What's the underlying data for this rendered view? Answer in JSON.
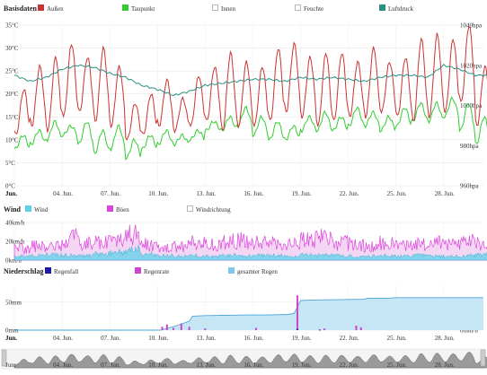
{
  "colors": {
    "outdoor": "#cc3333",
    "dewpoint": "#33cc33",
    "pressure": "#2a9080",
    "wind": "#5fd0e8",
    "gusts": "#dd44dd",
    "rainfall": "#1a1aa8",
    "rainrate": "#cc44cc",
    "total_rain": "#7ec8ec",
    "grid": "#e6e6e6",
    "disabled": "#bbbbbb"
  },
  "x_axis": {
    "ticks": [
      "Jun.",
      "04. Jun.",
      "07. Jun.",
      "10. Jun.",
      "13. Jun.",
      "16. Jun.",
      "19. Jun.",
      "22. Jun.",
      "25. Jun.",
      "28. Jun."
    ],
    "tick_days": [
      1,
      4,
      7,
      10,
      13,
      16,
      19,
      22,
      25,
      28
    ],
    "range_days": [
      1,
      30.5
    ]
  },
  "panels": {
    "basis": {
      "title": "Basisdaten",
      "legend": [
        {
          "label": "Außen",
          "color_key": "outdoor",
          "enabled": true
        },
        {
          "label": "Taupunkt",
          "color_key": "dewpoint",
          "enabled": true
        },
        {
          "label": "Innen",
          "color_key": "disabled",
          "enabled": false
        },
        {
          "label": "Feuchte",
          "color_key": "disabled",
          "enabled": false
        },
        {
          "label": "Luftdruck",
          "color_key": "pressure",
          "enabled": true
        }
      ],
      "y_left_ticks": [
        "0°C",
        "5°C",
        "10°C",
        "15°C",
        "20°C",
        "25°C",
        "30°C",
        "35°C"
      ],
      "y_right_ticks": [
        "960hpa",
        "980hpa",
        "1000hpa",
        "1020hpa",
        "1040hpa"
      ]
    },
    "wind": {
      "title": "Wind",
      "legend": [
        {
          "label": "Wind",
          "color_key": "wind",
          "enabled": true
        },
        {
          "label": "Böen",
          "color_key": "gusts",
          "enabled": true
        },
        {
          "label": "Windrichtung",
          "color_key": "disabled",
          "enabled": false
        }
      ],
      "y_ticks": [
        "0km/h",
        "20km/h",
        "40km/h"
      ]
    },
    "rain": {
      "title": "Niederschlag",
      "legend": [
        {
          "label": "Regenfall",
          "color_key": "rainfall",
          "enabled": true
        },
        {
          "label": "Regenrate",
          "color_key": "rainrate",
          "enabled": true
        },
        {
          "label": "gesamter Regen",
          "color_key": "total_rain",
          "enabled": true
        }
      ],
      "y_left_ticks": [
        "0mm",
        "50mm"
      ],
      "y_right_ticks": [
        "0mm/h",
        "50mm/h"
      ]
    }
  },
  "chart_data": [
    {
      "type": "line",
      "panel": "Basisdaten",
      "x_unit": "day of June",
      "ylim_left": [
        0,
        35
      ],
      "ylim_right": [
        960,
        1040
      ],
      "series": [
        {
          "name": "Außen",
          "axis": "left",
          "unit": "°C",
          "daily_max": [
            21,
            26,
            28,
            31,
            28,
            30,
            26,
            18,
            20,
            23,
            19,
            24,
            26,
            29,
            27,
            26,
            30,
            31,
            28,
            29,
            29,
            27,
            30,
            27,
            28,
            32,
            33,
            32,
            35,
            26
          ],
          "daily_min": [
            11,
            13,
            12,
            15,
            16,
            14,
            13,
            10,
            11,
            13,
            12,
            13,
            14,
            12,
            13,
            13,
            14,
            16,
            15,
            13,
            14,
            15,
            15,
            16,
            15,
            14,
            15,
            16,
            18,
            13
          ]
        },
        {
          "name": "Taupunkt",
          "axis": "left",
          "unit": "°C",
          "daily_max": [
            11,
            12,
            14,
            13,
            14,
            12,
            13,
            10,
            11,
            12,
            11,
            12,
            14,
            15,
            17,
            15,
            14,
            13,
            15,
            16,
            15,
            17,
            16,
            15,
            17,
            18,
            18,
            19,
            18,
            15
          ],
          "daily_min": [
            8,
            9,
            10,
            11,
            9,
            7,
            8,
            6,
            8,
            9,
            9,
            10,
            12,
            12,
            13,
            11,
            10,
            10,
            12,
            12,
            12,
            13,
            13,
            12,
            13,
            14,
            14,
            15,
            12,
            9
          ]
        },
        {
          "name": "Luftdruck",
          "axis": "right",
          "unit": "hpa",
          "daily": [
            1015,
            1012,
            1014,
            1018,
            1020,
            1019,
            1016,
            1014,
            1010,
            1008,
            1005,
            1007,
            1010,
            1011,
            1012,
            1013,
            1013,
            1012,
            1014,
            1013,
            1014,
            1013,
            1012,
            1014,
            1015,
            1015,
            1014,
            1020,
            1018,
            1015
          ]
        }
      ]
    },
    {
      "type": "area",
      "panel": "Wind",
      "x_unit": "day of June",
      "ylim": [
        0,
        40
      ],
      "series": [
        {
          "name": "Wind",
          "unit": "km/h",
          "daily": [
            5,
            6,
            7,
            6,
            6,
            8,
            10,
            14,
            8,
            6,
            5,
            6,
            5,
            6,
            5,
            6,
            6,
            5,
            7,
            6,
            6,
            5,
            5,
            6,
            5,
            6,
            5,
            5,
            6,
            7
          ]
        },
        {
          "name": "Böen",
          "unit": "km/h",
          "daily": [
            15,
            18,
            20,
            28,
            22,
            25,
            30,
            35,
            20,
            16,
            18,
            22,
            20,
            24,
            25,
            22,
            21,
            20,
            25,
            28,
            22,
            20,
            18,
            22,
            21,
            20,
            23,
            20,
            24,
            22
          ]
        }
      ]
    },
    {
      "type": "area",
      "panel": "Niederschlag",
      "x_unit": "day of June",
      "ylim_left": [
        0,
        80
      ],
      "ylim_right": [
        0,
        80
      ],
      "series": [
        {
          "name": "gesamter Regen",
          "axis": "left",
          "unit": "mm",
          "points": [
            [
              1,
              0
            ],
            [
              10.2,
              0
            ],
            [
              11.2,
              8
            ],
            [
              12,
              16
            ],
            [
              12.2,
              25
            ],
            [
              13,
              26
            ],
            [
              15.5,
              27
            ],
            [
              17,
              27
            ],
            [
              18.2,
              28
            ],
            [
              18.6,
              30
            ],
            [
              19,
              53
            ],
            [
              20,
              54
            ],
            [
              23,
              55
            ],
            [
              23.2,
              57
            ],
            [
              24.5,
              57
            ],
            [
              25,
              58
            ],
            [
              30.5,
              58
            ]
          ]
        },
        {
          "name": "Regenrate",
          "axis": "right",
          "unit": "mm/h",
          "points": [
            [
              10.3,
              6
            ],
            [
              10.6,
              10
            ],
            [
              11,
              4
            ],
            [
              11.5,
              12
            ],
            [
              12,
              6
            ],
            [
              13,
              3
            ],
            [
              16.2,
              4
            ],
            [
              18.8,
              62
            ],
            [
              20.5,
              3
            ],
            [
              22.5,
              8
            ],
            [
              22.8,
              5
            ]
          ]
        },
        {
          "name": "Regenfall",
          "axis": "left",
          "unit": "mm",
          "points": [
            [
              18.8,
              2
            ],
            [
              20.2,
              1
            ]
          ]
        }
      ]
    }
  ]
}
